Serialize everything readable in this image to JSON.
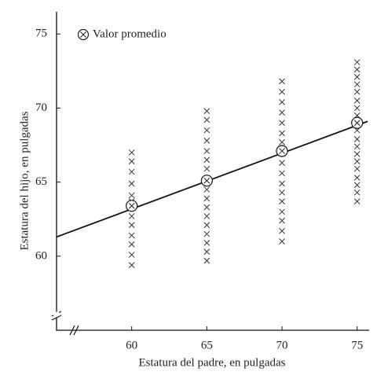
{
  "chart_data": {
    "type": "scatter",
    "x_label": "Estatura del padre, en pulgadas",
    "y_label": "Estatura del hijo, en pulgadas",
    "xlim": [
      55,
      75.8
    ],
    "ylim": [
      55,
      76.5
    ],
    "xticks": [
      60,
      65,
      70,
      75
    ],
    "yticks": [
      60,
      65,
      70,
      75
    ],
    "series": [
      {
        "x": [
          60,
          60,
          60,
          60,
          60,
          60,
          60,
          60,
          60,
          60,
          60,
          60,
          65,
          65,
          65,
          65,
          65,
          65,
          65,
          65,
          65,
          65,
          65,
          65,
          65,
          65,
          65,
          65,
          65,
          70,
          70,
          70,
          70,
          70,
          70,
          70,
          70,
          70,
          70,
          70,
          70,
          70,
          70,
          70,
          70,
          70,
          75,
          75,
          75,
          75,
          75,
          75,
          75,
          75,
          75,
          75,
          75,
          75,
          75,
          75,
          75,
          75,
          75,
          75,
          75
        ],
        "values": [
          67.0,
          66.4,
          65.7,
          64.9,
          64.1,
          63.7,
          62.7,
          62.1,
          61.4,
          60.8,
          60.1,
          59.4,
          69.8,
          69.2,
          68.5,
          67.8,
          67.1,
          66.5,
          65.9,
          64.5,
          63.9,
          63.3,
          62.7,
          62.1,
          61.5,
          60.9,
          60.3,
          59.7,
          64.9,
          71.8,
          71.1,
          70.4,
          69.7,
          69.0,
          68.3,
          67.7,
          66.3,
          65.6,
          64.9,
          64.3,
          63.7,
          63.0,
          62.4,
          61.7,
          61.0,
          67.0,
          73.1,
          72.6,
          72.1,
          71.6,
          71.1,
          70.5,
          70.0,
          69.5,
          68.5,
          67.9,
          67.4,
          66.9,
          66.4,
          65.9,
          65.3,
          64.8,
          64.3,
          63.7,
          69.0
        ],
        "color": "#333"
      },
      {
        "name": "Valor promedio",
        "x": [
          60,
          65,
          70,
          75
        ],
        "values": [
          63.4,
          65.1,
          67.1,
          69.0
        ],
        "color": "#222"
      }
    ],
    "line": {
      "x": [
        55,
        75.7
      ],
      "values": [
        61.3,
        69.1
      ],
      "color": "#111"
    }
  }
}
